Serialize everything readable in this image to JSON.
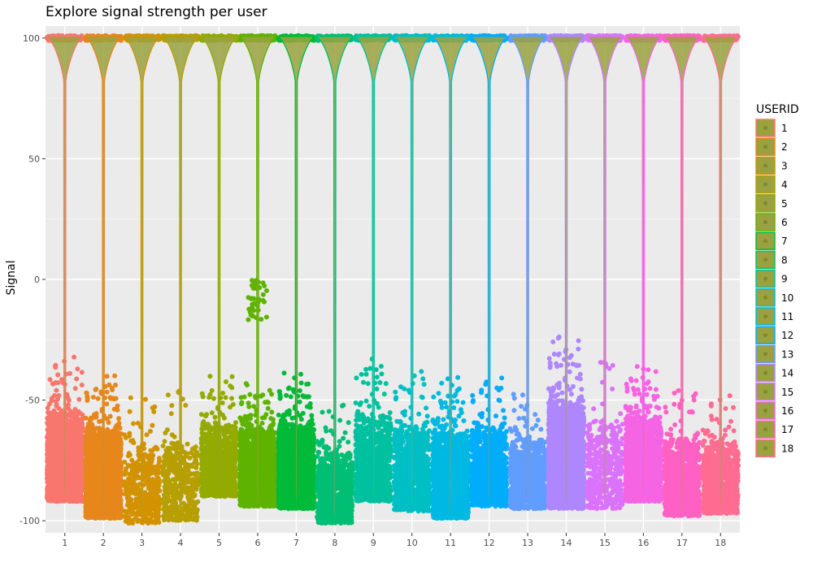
{
  "chart_data": {
    "type": "violin",
    "title": "Explore signal strength per user",
    "xlabel": "",
    "ylabel": "Signal",
    "ylim": [
      -105,
      105
    ],
    "yticks": [
      100,
      50,
      0,
      -50,
      -100
    ],
    "grid": true,
    "legend_position": "right",
    "legend_title": "USERID",
    "categories": [
      "1",
      "2",
      "3",
      "4",
      "5",
      "6",
      "7",
      "8",
      "9",
      "10",
      "11",
      "12",
      "13",
      "14",
      "15",
      "16",
      "17",
      "18"
    ],
    "series": [
      {
        "name": "1",
        "color": "#F8766D",
        "main": 100,
        "noise_min": -92,
        "noise_max": -31,
        "density": "high",
        "extra_min": null,
        "extra_max": null
      },
      {
        "name": "2",
        "color": "#E7861B",
        "main": 100,
        "noise_min": -99,
        "noise_max": -38,
        "density": "high",
        "extra_min": null,
        "extra_max": null
      },
      {
        "name": "3",
        "color": "#D39200",
        "main": 100,
        "noise_min": -101,
        "noise_max": -48,
        "density": "low",
        "extra_min": null,
        "extra_max": null
      },
      {
        "name": "4",
        "color": "#B79F00",
        "main": 100,
        "noise_min": -100,
        "noise_max": -45,
        "density": "low",
        "extra_min": null,
        "extra_max": null
      },
      {
        "name": "5",
        "color": "#93AA00",
        "main": 100,
        "noise_min": -90,
        "noise_max": -40,
        "density": "mid",
        "extra_min": null,
        "extra_max": null
      },
      {
        "name": "6",
        "color": "#5EB300",
        "main": 100,
        "noise_min": -94,
        "noise_max": -41,
        "density": "high",
        "extra_min": -17,
        "extra_max": 0
      },
      {
        "name": "7",
        "color": "#00BA38",
        "main": 100,
        "noise_min": -95,
        "noise_max": -38,
        "density": "high",
        "extra_min": null,
        "extra_max": null
      },
      {
        "name": "8",
        "color": "#00BF74",
        "main": 100,
        "noise_min": -101,
        "noise_max": -52,
        "density": "mid",
        "extra_min": null,
        "extra_max": null
      },
      {
        "name": "9",
        "color": "#00C19F",
        "main": 100,
        "noise_min": -92,
        "noise_max": -32,
        "density": "mid",
        "extra_min": null,
        "extra_max": null
      },
      {
        "name": "10",
        "color": "#00BFC4",
        "main": 100,
        "noise_min": -96,
        "noise_max": -38,
        "density": "mid",
        "extra_min": null,
        "extra_max": null
      },
      {
        "name": "11",
        "color": "#00B9E3",
        "main": 100,
        "noise_min": -99,
        "noise_max": -40,
        "density": "high",
        "extra_min": null,
        "extra_max": null
      },
      {
        "name": "12",
        "color": "#00ADFA",
        "main": 100,
        "noise_min": -94,
        "noise_max": -40,
        "density": "mid",
        "extra_min": null,
        "extra_max": null
      },
      {
        "name": "13",
        "color": "#619CFF",
        "main": 100,
        "noise_min": -95,
        "noise_max": -47,
        "density": "mid",
        "extra_min": null,
        "extra_max": null
      },
      {
        "name": "14",
        "color": "#AE87FF",
        "main": 100,
        "noise_min": -95,
        "noise_max": -22,
        "density": "high",
        "extra_min": null,
        "extra_max": null
      },
      {
        "name": "15",
        "color": "#DB72FB",
        "main": 100,
        "noise_min": -95,
        "noise_max": -34,
        "density": "low",
        "extra_min": null,
        "extra_max": null
      },
      {
        "name": "16",
        "color": "#F564E3",
        "main": 100,
        "noise_min": -92,
        "noise_max": -35,
        "density": "high",
        "extra_min": null,
        "extra_max": null
      },
      {
        "name": "17",
        "color": "#FF61C3",
        "main": 100,
        "noise_min": -98,
        "noise_max": -45,
        "density": "mid",
        "extra_min": null,
        "extra_max": null
      },
      {
        "name": "18",
        "color": "#FF6C91",
        "main": 100,
        "noise_min": -97,
        "noise_max": -47,
        "density": "mid",
        "extra_min": null,
        "extra_max": null
      }
    ]
  },
  "styles": {
    "panel_bg": "#EBEBEB",
    "grid_major": "#FFFFFF",
    "violin_fill": "#9AA240",
    "text_main": "#000000",
    "text_axis": "#4D4D4D",
    "legend_key_bg": "#9AA240"
  }
}
